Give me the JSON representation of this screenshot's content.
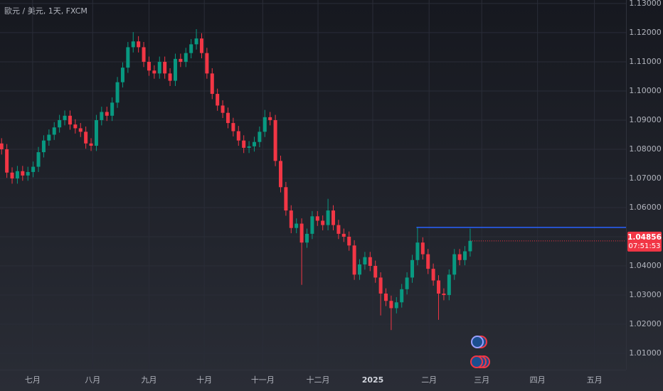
{
  "chart_data": {
    "type": "candlestick",
    "title": "歐元 / 美元, 1天, FXCM",
    "up_color": "#089981",
    "down_color": "#f23645",
    "grid": true,
    "xlim": [
      -0.3,
      118.6
    ],
    "xticks": [
      {
        "value": 5.9,
        "label": "七月"
      },
      {
        "value": 17.3,
        "label": "八月"
      },
      {
        "value": 28.0,
        "label": "九月"
      },
      {
        "value": 38.5,
        "label": "十月"
      },
      {
        "value": 49.6,
        "label": "十一月"
      },
      {
        "value": 60.1,
        "label": "十二月"
      },
      {
        "value": 70.5,
        "label": "2025"
      },
      {
        "value": 81.2,
        "label": "二月"
      },
      {
        "value": 91.2,
        "label": "三月"
      },
      {
        "value": 101.8,
        "label": "四月"
      },
      {
        "value": 112.6,
        "label": "五月"
      }
    ],
    "ylim": [
      1.0044,
      1.1312
    ],
    "yticks": [
      {
        "value": 1.01,
        "label": "1.01000"
      },
      {
        "value": 1.02,
        "label": "1.02000"
      },
      {
        "value": 1.03,
        "label": "1.03000"
      },
      {
        "value": 1.04,
        "label": "1.04000"
      },
      {
        "value": 1.05,
        "label": "1.05000"
      },
      {
        "value": 1.06,
        "label": "1.06000"
      },
      {
        "value": 1.07,
        "label": "1.07000"
      },
      {
        "value": 1.08,
        "label": "1.08000"
      },
      {
        "value": 1.09,
        "label": "1.09000"
      },
      {
        "value": 1.1,
        "label": "1.10000"
      },
      {
        "value": 1.11,
        "label": "1.11000"
      },
      {
        "value": 1.12,
        "label": "1.12000"
      },
      {
        "value": 1.13,
        "label": "1.13000"
      }
    ],
    "open": [
      1.082,
      1.08,
      1.072,
      1.07,
      1.0725,
      1.071,
      1.0722,
      1.074,
      1.079,
      1.083,
      1.085,
      1.0875,
      1.09,
      1.0915,
      1.0885,
      1.0872,
      1.086,
      1.082,
      1.0812,
      1.09,
      1.0928,
      1.0915,
      1.096,
      1.103,
      1.108,
      1.115,
      1.117,
      1.115,
      1.11,
      1.107,
      1.106,
      1.11,
      1.106,
      1.1035,
      1.111,
      1.11,
      1.113,
      1.116,
      1.118,
      1.113,
      1.106,
      1.099,
      1.095,
      1.0925,
      1.089,
      1.0862,
      1.083,
      1.0805,
      1.081,
      1.0825,
      1.086,
      1.091,
      1.09,
      1.076,
      1.067,
      1.059,
      1.053,
      1.0545,
      1.048,
      1.051,
      1.057,
      1.0555,
      1.054,
      1.059,
      1.054,
      1.051,
      1.05,
      1.047,
      1.037,
      1.0405,
      1.043,
      1.04,
      1.036,
      1.0305,
      1.028,
      1.0255,
      1.0275,
      1.032,
      1.036,
      1.042,
      1.048,
      1.044,
      1.039,
      1.035,
      1.0305,
      1.03,
      1.037,
      1.044,
      1.042,
      1.045
    ],
    "high": [
      1.0838,
      1.0818,
      1.0738,
      1.0743,
      1.0743,
      1.074,
      1.0758,
      1.0808,
      1.0848,
      1.0868,
      1.0893,
      1.0918,
      1.0933,
      1.0933,
      1.0903,
      1.089,
      1.0878,
      1.0838,
      1.0918,
      1.0946,
      1.0946,
      1.0978,
      1.1048,
      1.1098,
      1.1168,
      1.1202,
      1.1188,
      1.1168,
      1.1118,
      1.1088,
      1.1118,
      1.1118,
      1.1078,
      1.1128,
      1.1128,
      1.1148,
      1.1178,
      1.1212,
      1.1198,
      1.1148,
      1.1078,
      1.1008,
      1.0968,
      1.0943,
      1.0908,
      1.088,
      1.0848,
      1.0828,
      1.0843,
      1.0878,
      1.0935,
      1.0928,
      1.0918,
      1.0778,
      1.0688,
      1.0608,
      1.0563,
      1.0563,
      1.0528,
      1.0588,
      1.0588,
      1.0573,
      1.063,
      1.0608,
      1.0558,
      1.0528,
      1.0518,
      1.0488,
      1.0423,
      1.0448,
      1.0448,
      1.0418,
      1.0378,
      1.0323,
      1.0298,
      1.0293,
      1.0338,
      1.0378,
      1.0438,
      1.0532,
      1.0498,
      1.0458,
      1.0408,
      1.0368,
      1.0323,
      1.0388,
      1.0458,
      1.0458,
      1.0468,
      1.0528
    ],
    "low": [
      1.0782,
      1.0702,
      1.0682,
      1.0682,
      1.0692,
      1.0692,
      1.0704,
      1.0722,
      1.0772,
      1.0812,
      1.0832,
      1.0857,
      1.0882,
      1.0867,
      1.0854,
      1.0842,
      1.0802,
      1.0794,
      1.0794,
      1.0882,
      1.0897,
      1.0897,
      1.0942,
      1.1012,
      1.1062,
      1.1132,
      1.1132,
      1.1082,
      1.1052,
      1.1042,
      1.1042,
      1.1042,
      1.1017,
      1.1017,
      1.1082,
      1.1082,
      1.1112,
      1.1142,
      1.1112,
      1.1042,
      1.0972,
      1.0932,
      1.0907,
      1.0872,
      1.0844,
      1.0812,
      1.0787,
      1.0787,
      1.0792,
      1.0807,
      1.0842,
      1.0882,
      1.0742,
      1.0652,
      1.0572,
      1.0512,
      1.0512,
      1.0335,
      1.0462,
      1.0492,
      1.0537,
      1.0522,
      1.0522,
      1.0522,
      1.0492,
      1.0482,
      1.0452,
      1.0352,
      1.0352,
      1.0387,
      1.0382,
      1.0342,
      1.023,
      1.0262,
      1.018,
      1.0237,
      1.0257,
      1.0302,
      1.0342,
      1.0402,
      1.0422,
      1.0372,
      1.0332,
      1.0215,
      1.0282,
      1.0282,
      1.0352,
      1.0402,
      1.0402,
      1.0432
    ],
    "close": [
      1.08,
      1.072,
      1.07,
      1.0725,
      1.071,
      1.0722,
      1.074,
      1.079,
      1.083,
      1.085,
      1.0875,
      1.09,
      1.0915,
      1.0885,
      1.0872,
      1.086,
      1.082,
      1.0812,
      1.09,
      1.0928,
      1.0915,
      1.096,
      1.103,
      1.108,
      1.115,
      1.117,
      1.115,
      1.11,
      1.107,
      1.106,
      1.11,
      1.106,
      1.1035,
      1.111,
      1.11,
      1.113,
      1.116,
      1.118,
      1.113,
      1.106,
      1.099,
      1.095,
      1.0925,
      1.089,
      1.0862,
      1.083,
      1.0805,
      1.081,
      1.0825,
      1.086,
      1.091,
      1.09,
      1.076,
      1.067,
      1.059,
      1.053,
      1.0545,
      1.048,
      1.051,
      1.057,
      1.0555,
      1.054,
      1.059,
      1.054,
      1.051,
      1.05,
      1.047,
      1.037,
      1.0405,
      1.043,
      1.04,
      1.036,
      1.0305,
      1.028,
      1.0255,
      1.0275,
      1.032,
      1.036,
      1.042,
      1.048,
      1.044,
      1.039,
      1.035,
      1.0305,
      1.03,
      1.037,
      1.044,
      1.042,
      1.045,
      1.0486
    ],
    "hline": {
      "value": 1.0532,
      "start": 78.8,
      "color": "#2962ff"
    },
    "last_price": {
      "value": 1.04856,
      "countdown": "07:51:53",
      "color": "#f23645"
    }
  }
}
